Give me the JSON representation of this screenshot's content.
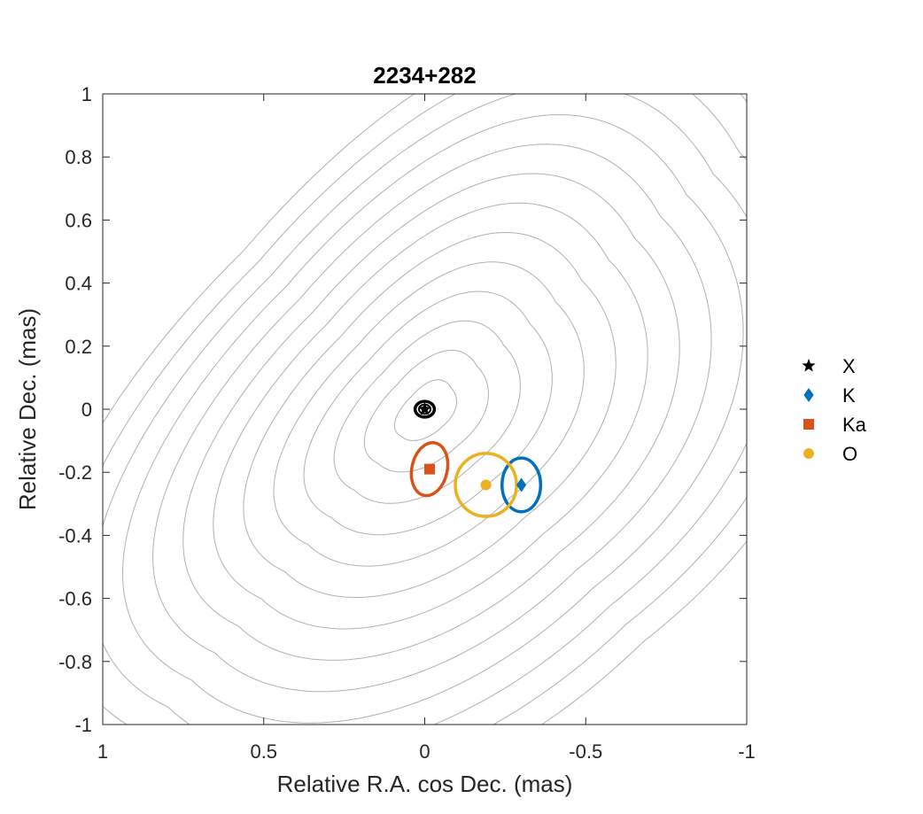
{
  "chart_data": {
    "type": "scatter",
    "title": "2234+282",
    "xlabel": "Relative R.A. cos Dec. (mas)",
    "ylabel": "Relative Dec. (mas)",
    "xlim": [
      1,
      -1
    ],
    "ylim": [
      -1,
      1
    ],
    "x_reversed": true,
    "x_ticks": [
      1,
      0.5,
      0,
      -0.5,
      -1
    ],
    "x_tick_labels": [
      "1",
      "0.5",
      "0",
      "-0.5",
      "-1"
    ],
    "y_ticks": [
      1,
      0.8,
      0.6,
      0.4,
      0.2,
      0,
      -0.2,
      -0.4,
      -0.6,
      -0.8,
      -1
    ],
    "y_tick_labels": [
      "1",
      "0.8",
      "0.6",
      "0.4",
      "0.2",
      "0",
      "-0.2",
      "-0.4",
      "-0.6",
      "-0.8",
      "-1"
    ],
    "grid": false,
    "legend_position": "outside-right",
    "contours": {
      "color": "#b0b0b0",
      "center": [
        0,
        0
      ],
      "levels": 13
    },
    "series": [
      {
        "name": "X",
        "marker": "star",
        "color": "#000000",
        "x": 0.0,
        "y": 0.0,
        "error_ellipse": {
          "a": 0.03,
          "b": 0.025,
          "angle_deg": 0
        }
      },
      {
        "name": "K",
        "marker": "diamond",
        "color": "#0072BD",
        "x": -0.3,
        "y": -0.24,
        "error_ellipse": {
          "a": 0.06,
          "b": 0.085,
          "angle_deg": 0
        }
      },
      {
        "name": "Ka",
        "marker": "square",
        "color": "#D95319",
        "x": -0.015,
        "y": -0.19,
        "error_ellipse": {
          "a": 0.055,
          "b": 0.085,
          "angle_deg": 12
        }
      },
      {
        "name": "O",
        "marker": "circle",
        "color": "#EDB120",
        "x": -0.19,
        "y": -0.24,
        "error_ellipse": {
          "a": 0.095,
          "b": 0.1,
          "angle_deg": 0
        }
      }
    ]
  }
}
